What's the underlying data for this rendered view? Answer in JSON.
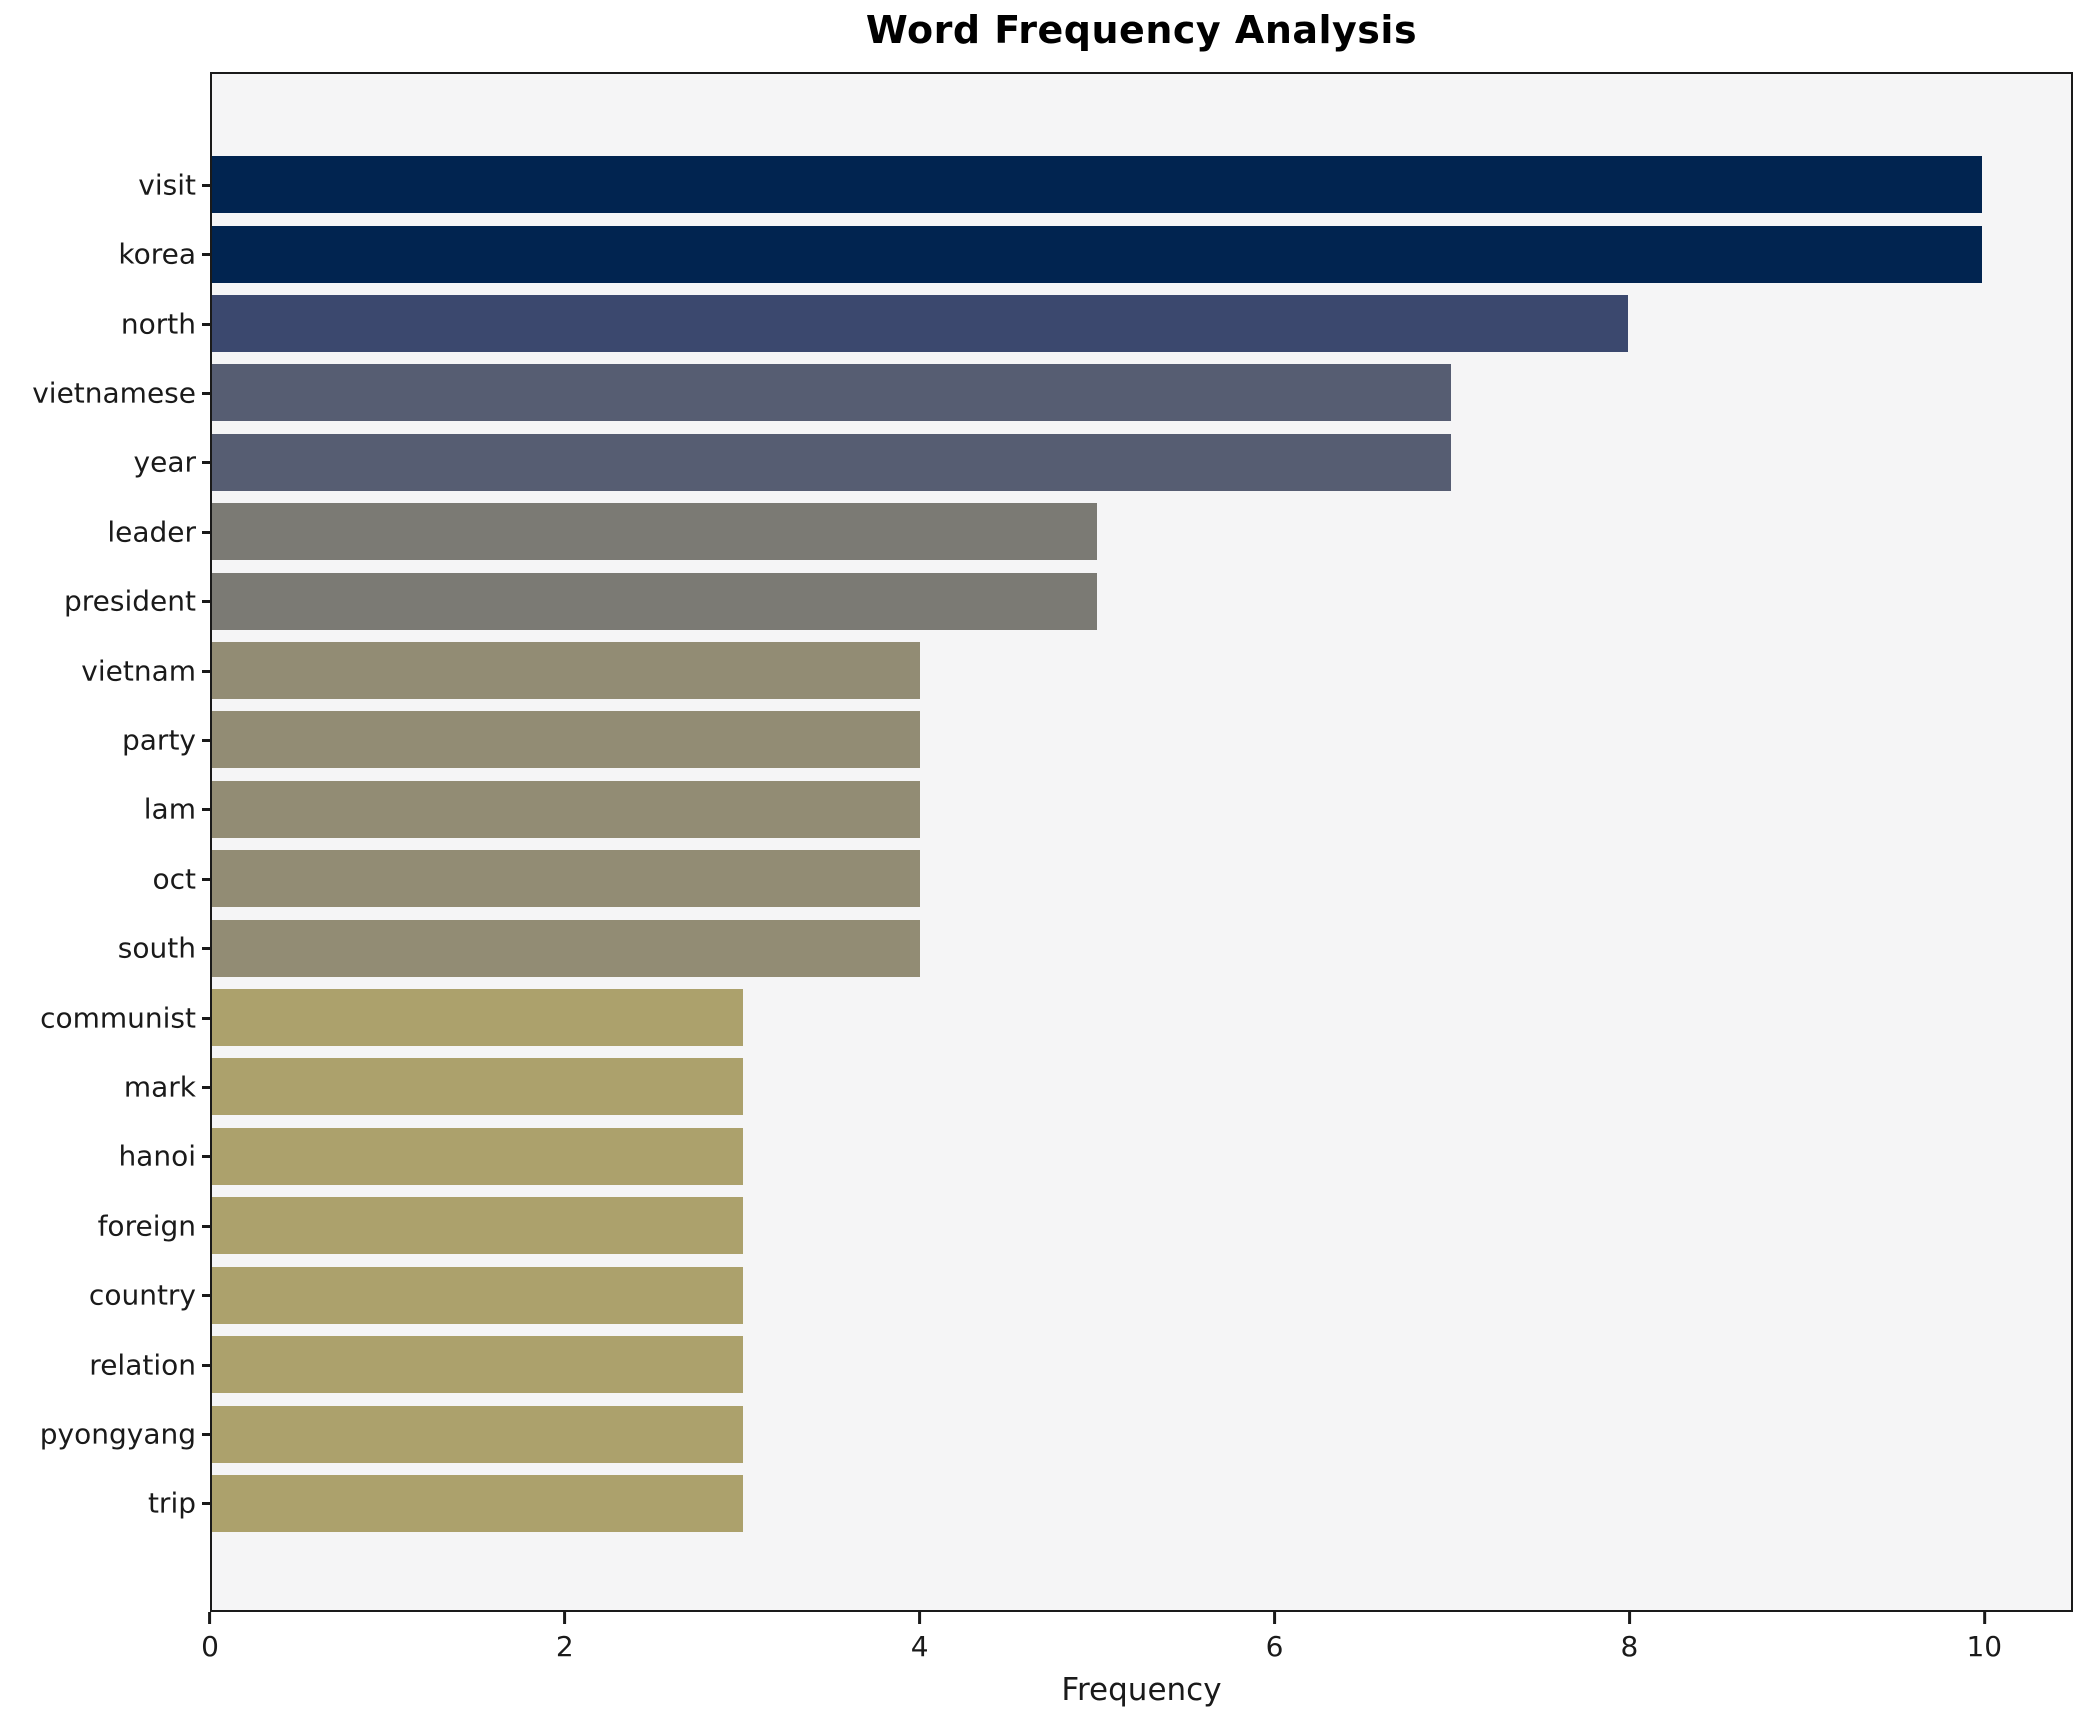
{
  "chart_data": {
    "type": "bar",
    "orientation": "horizontal",
    "title": "Word Frequency Analysis",
    "xlabel": "Frequency",
    "ylabel": "",
    "categories": [
      "visit",
      "korea",
      "north",
      "vietnamese",
      "year",
      "leader",
      "president",
      "vietnam",
      "party",
      "lam",
      "oct",
      "south",
      "communist",
      "mark",
      "hanoi",
      "foreign",
      "country",
      "relation",
      "pyongyang",
      "trip"
    ],
    "values": [
      10,
      10,
      8,
      7,
      7,
      5,
      5,
      4,
      4,
      4,
      4,
      4,
      3,
      3,
      3,
      3,
      3,
      3,
      3,
      3
    ],
    "bar_colors": [
      "#012450",
      "#012450",
      "#3b486e",
      "#565d72",
      "#565d72",
      "#7b7a74",
      "#7b7a74",
      "#928c74",
      "#928c74",
      "#928c74",
      "#928c74",
      "#928c74",
      "#aca16c",
      "#aca16c",
      "#aca16c",
      "#aca16c",
      "#aca16c",
      "#aca16c",
      "#aca16c",
      "#aca16c"
    ],
    "xlim": [
      0,
      10.5
    ],
    "xticks": [
      0,
      2,
      4,
      6,
      8,
      10
    ],
    "grid": false,
    "legend": "none",
    "plot_background": "#f5f5f6",
    "figure_background": "#ffffff",
    "spine_color": "#1a1a1a"
  }
}
